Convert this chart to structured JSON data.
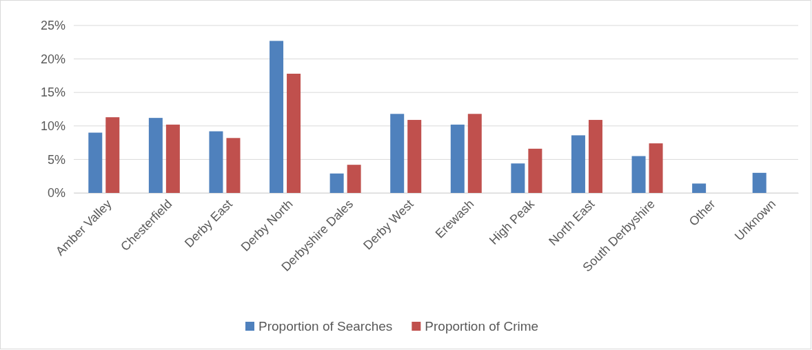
{
  "chart_data": {
    "type": "bar",
    "categories": [
      "Amber Valley",
      "Chesterfield",
      "Derby East",
      "Derby North",
      "Derbyshire Dales",
      "Derby West",
      "Erewash",
      "High Peak",
      "North East",
      "South Derbyshire",
      "Other",
      "Unknown"
    ],
    "series": [
      {
        "name": "Proportion of Searches",
        "color": "#4f81bd",
        "values": [
          9.0,
          11.2,
          9.2,
          22.7,
          2.9,
          11.8,
          10.2,
          4.4,
          8.6,
          5.5,
          1.4,
          3.0
        ]
      },
      {
        "name": "Proportion of Crime",
        "color": "#c0504d",
        "values": [
          11.3,
          10.2,
          8.2,
          17.8,
          4.2,
          10.9,
          11.8,
          6.6,
          10.9,
          7.4,
          null,
          null
        ]
      }
    ],
    "ylim": [
      0,
      25
    ],
    "yticks": [
      {
        "value": 0,
        "label": "0%"
      },
      {
        "value": 5,
        "label": "5%"
      },
      {
        "value": 10,
        "label": "10%"
      },
      {
        "value": 15,
        "label": "15%"
      },
      {
        "value": 20,
        "label": "20%"
      },
      {
        "value": 25,
        "label": "25%"
      }
    ],
    "grid": "y",
    "legend": "bottom"
  }
}
